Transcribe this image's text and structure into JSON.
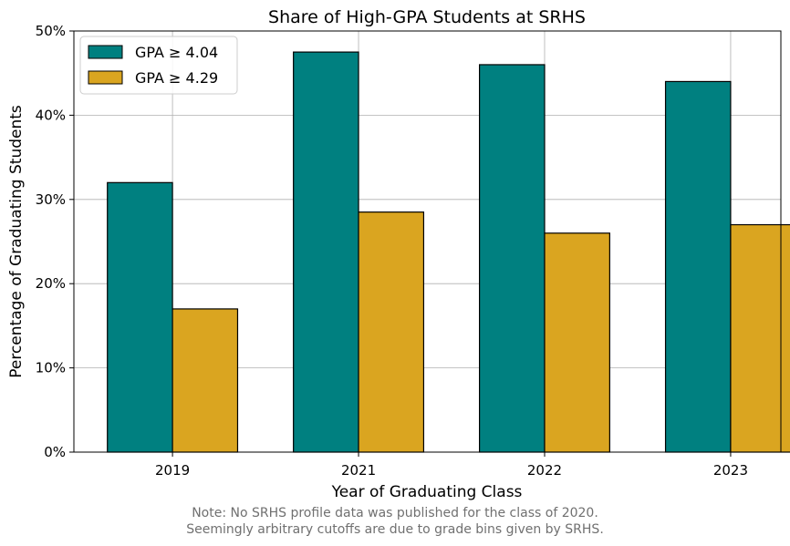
{
  "chart_data": {
    "type": "bar",
    "title": "Share of High-GPA Students at SRHS",
    "xlabel": "Year of Graduating Class",
    "ylabel": "Percentage of Graduating Students",
    "categories": [
      "2019",
      "2021",
      "2022",
      "2023"
    ],
    "series": [
      {
        "name": "GPA ≥ 4.04",
        "values": [
          32,
          47.5,
          46,
          44
        ],
        "color": "#008080"
      },
      {
        "name": "GPA ≥ 4.29",
        "values": [
          17,
          28.5,
          26,
          27
        ],
        "color": "#DAA520"
      }
    ],
    "ylim": [
      0,
      50
    ],
    "yticks": [
      0,
      10,
      20,
      30,
      40,
      50
    ],
    "ytick_labels": [
      "0%",
      "10%",
      "20%",
      "30%",
      "40%",
      "50%"
    ],
    "grid": true,
    "legend_position": "top-left",
    "notes": [
      "Note: No SRHS profile data was published for the class of 2020.",
      "Seemingly arbitrary cutoffs are due to grade bins given by SRHS."
    ]
  }
}
